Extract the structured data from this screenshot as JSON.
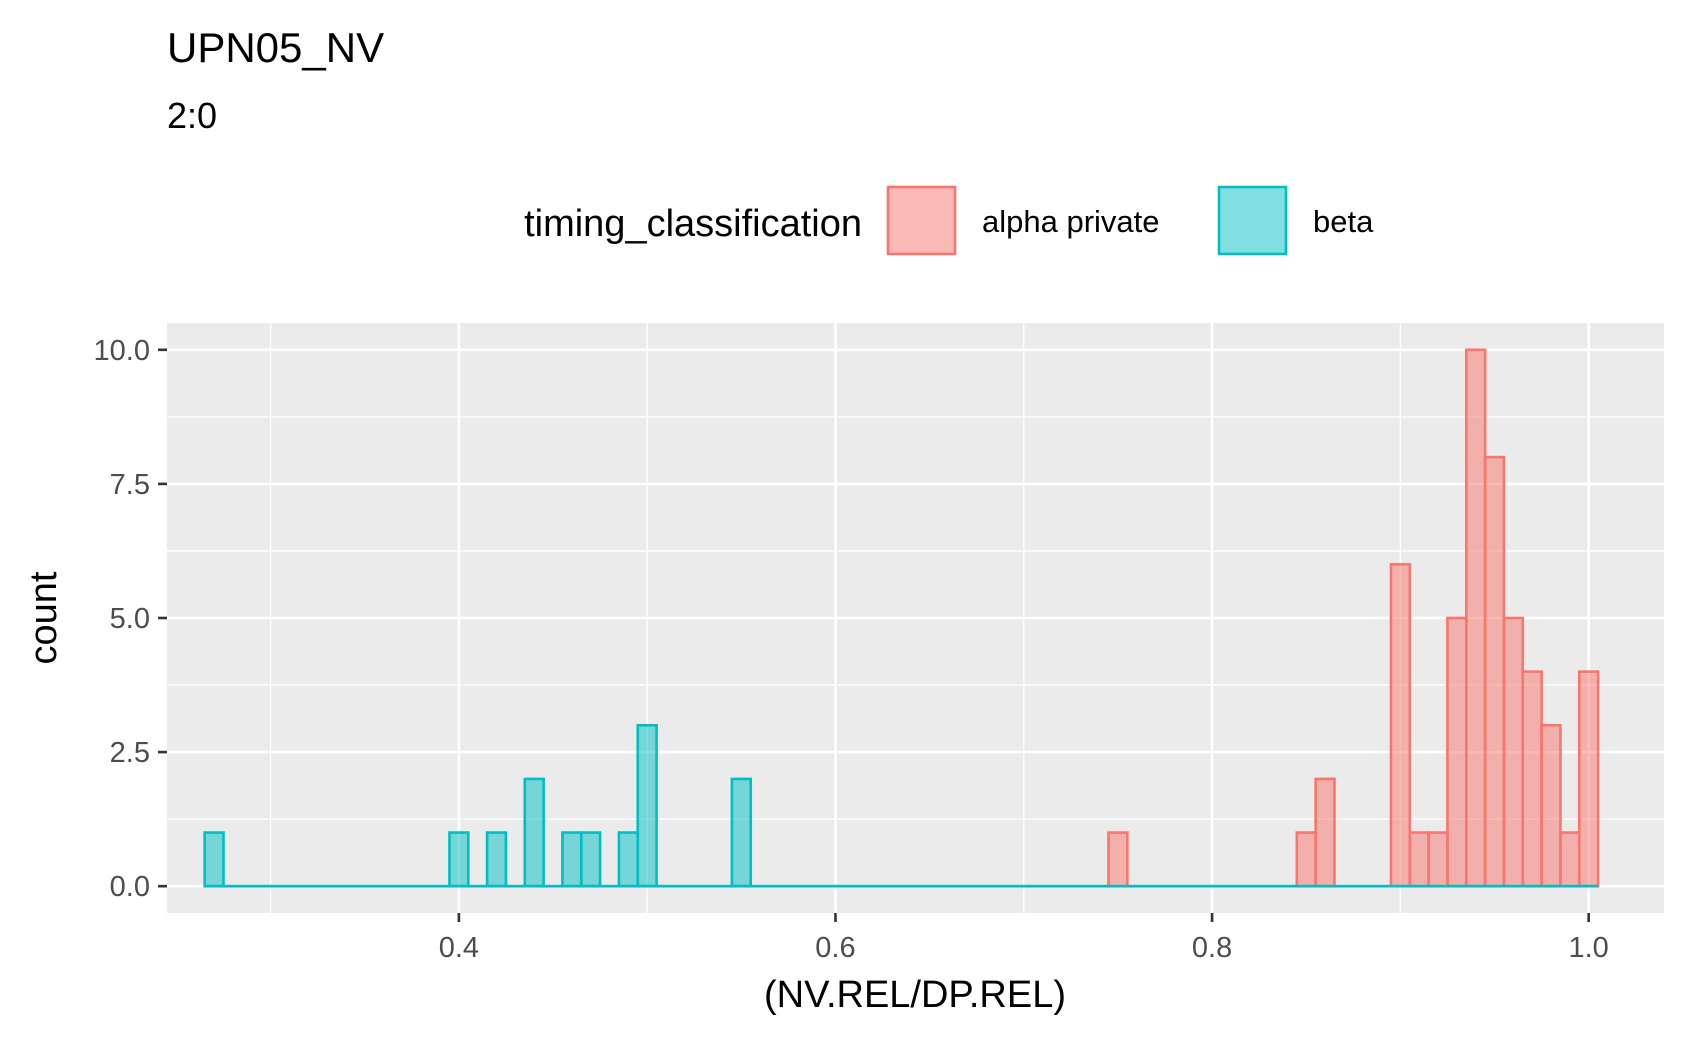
{
  "chart_data": {
    "type": "bar",
    "title": "UPN05_NV",
    "subtitle": "2:0",
    "xlabel": "(NV.REL/DP.REL)",
    "ylabel": "count",
    "xlim": [
      0.245,
      1.04
    ],
    "ylim": [
      -0.5,
      10.5
    ],
    "x_ticks": [
      0.4,
      0.6,
      0.8,
      1.0
    ],
    "x_tick_labels": [
      "0.4",
      "0.6",
      "0.8",
      "1.0"
    ],
    "y_ticks": [
      0.0,
      2.5,
      5.0,
      7.5,
      10.0
    ],
    "y_tick_labels": [
      "0.0",
      "2.5",
      "5.0",
      "7.5",
      "10.0"
    ],
    "bin_width": 0.01,
    "grid": true,
    "legend_placement": "top",
    "legend": {
      "title": "timing_classification",
      "entries": [
        "alpha private",
        "beta"
      ]
    },
    "series": [
      {
        "name": "alpha private",
        "color": "#F8766D",
        "fill": "#F8766D",
        "range": [
          0.265,
          1.005
        ],
        "bins": [
          {
            "x": 0.75,
            "count": 1
          },
          {
            "x": 0.85,
            "count": 1
          },
          {
            "x": 0.86,
            "count": 2
          },
          {
            "x": 0.9,
            "count": 6
          },
          {
            "x": 0.91,
            "count": 1
          },
          {
            "x": 0.92,
            "count": 1
          },
          {
            "x": 0.93,
            "count": 5
          },
          {
            "x": 0.94,
            "count": 10
          },
          {
            "x": 0.95,
            "count": 8
          },
          {
            "x": 0.96,
            "count": 5
          },
          {
            "x": 0.97,
            "count": 4
          },
          {
            "x": 0.98,
            "count": 3
          },
          {
            "x": 0.99,
            "count": 1
          },
          {
            "x": 1.0,
            "count": 4
          }
        ]
      },
      {
        "name": "beta",
        "color": "#00BFC4",
        "fill": "#00BFC4",
        "range": [
          0.265,
          1.005
        ],
        "bins": [
          {
            "x": 0.27,
            "count": 1
          },
          {
            "x": 0.4,
            "count": 1
          },
          {
            "x": 0.42,
            "count": 1
          },
          {
            "x": 0.44,
            "count": 2
          },
          {
            "x": 0.46,
            "count": 1
          },
          {
            "x": 0.47,
            "count": 1
          },
          {
            "x": 0.49,
            "count": 1
          },
          {
            "x": 0.5,
            "count": 3
          },
          {
            "x": 0.55,
            "count": 2
          }
        ]
      }
    ]
  }
}
